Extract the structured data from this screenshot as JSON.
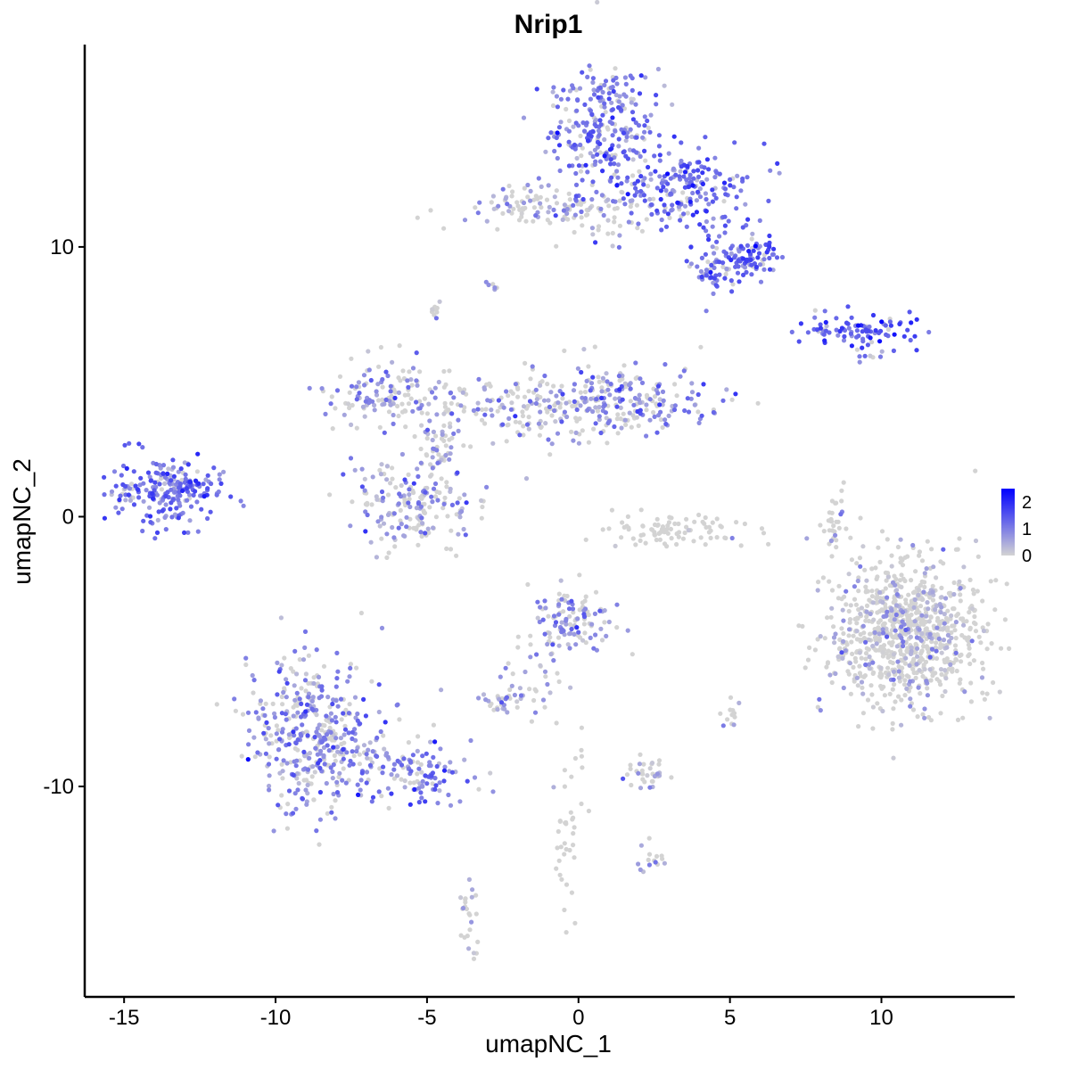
{
  "chart_data": {
    "type": "scatter",
    "title": "Nrip1",
    "xlabel": "umapNC_1",
    "ylabel": "umapNC_2",
    "xlim": [
      -16.3,
      14.4
    ],
    "ylim": [
      -17.8,
      17.5
    ],
    "x_ticks": [
      -15,
      -10,
      -5,
      0,
      5,
      10
    ],
    "y_ticks": [
      -10,
      0,
      10
    ],
    "x_tick_labels": [
      "-15",
      "-10",
      "-5",
      "0",
      "5",
      "10"
    ],
    "y_tick_labels": [
      "-10",
      "0",
      "10"
    ],
    "grid": false,
    "legend_position": "right",
    "color_scale": {
      "low_color": "#d3d3d3",
      "high_color": "#0000ff",
      "min": 0,
      "max": 2.5,
      "ticks": [
        0,
        1,
        2
      ],
      "tick_labels": [
        "0",
        "1",
        "2"
      ]
    },
    "clusters": [
      {
        "id": "top-main",
        "center": [
          0.8,
          14.5
        ],
        "spread": [
          0.9,
          1.2
        ],
        "n": 260,
        "expr_mean": 1.0
      },
      {
        "id": "top-arm",
        "center": [
          3.5,
          12.2
        ],
        "spread": [
          1.3,
          0.8
        ],
        "n": 220,
        "expr_mean": 1.2
      },
      {
        "id": "top-right-lobe",
        "center": [
          5.6,
          9.6
        ],
        "spread": [
          0.5,
          0.4
        ],
        "n": 90,
        "expr_mean": 1.3
      },
      {
        "id": "top-lower-lobe",
        "center": [
          4.4,
          9.2
        ],
        "spread": [
          0.4,
          0.5
        ],
        "n": 50,
        "expr_mean": 1.0
      },
      {
        "id": "top-left-strand",
        "center": [
          -1.5,
          11.5
        ],
        "spread": [
          1.3,
          0.4
        ],
        "n": 100,
        "expr_mean": 0.6
      },
      {
        "id": "top-link",
        "center": [
          1.2,
          11.2
        ],
        "spread": [
          1.0,
          0.5
        ],
        "n": 40,
        "expr_mean": 0.5
      },
      {
        "id": "right-upper",
        "center": [
          9.3,
          6.9
        ],
        "spread": [
          1.0,
          0.3
        ],
        "n": 90,
        "expr_mean": 1.4
      },
      {
        "id": "far-left",
        "center": [
          -13.5,
          1.0
        ],
        "spread": [
          0.9,
          0.6
        ],
        "n": 230,
        "expr_mean": 1.1
      },
      {
        "id": "mid-upper-left",
        "center": [
          -6.3,
          4.7
        ],
        "spread": [
          1.2,
          0.6
        ],
        "n": 130,
        "expr_mean": 0.7
      },
      {
        "id": "mid-center-arm",
        "center": [
          -1.2,
          4.0
        ],
        "spread": [
          2.0,
          0.6
        ],
        "n": 200,
        "expr_mean": 0.6
      },
      {
        "id": "mid-right-arm",
        "center": [
          1.8,
          4.3
        ],
        "spread": [
          1.6,
          0.6
        ],
        "n": 170,
        "expr_mean": 0.8
      },
      {
        "id": "mid-bottom-blob",
        "center": [
          -5.5,
          0.4
        ],
        "spread": [
          1.0,
          0.8
        ],
        "n": 180,
        "expr_mean": 0.7
      },
      {
        "id": "mid-stem",
        "center": [
          -4.6,
          2.6
        ],
        "spread": [
          0.4,
          0.8
        ],
        "n": 60,
        "expr_mean": 0.6
      },
      {
        "id": "crescent",
        "center": [
          3.0,
          -0.5
        ],
        "spread": [
          1.2,
          0.25
        ],
        "n": 90,
        "expr_mean": 0.1
      },
      {
        "id": "small-arc",
        "center": [
          8.4,
          -0.2
        ],
        "spread": [
          0.15,
          0.7
        ],
        "n": 30,
        "expr_mean": 0.3
      },
      {
        "id": "big-right",
        "center": [
          10.8,
          -4.3
        ],
        "spread": [
          1.2,
          1.4
        ],
        "n": 900,
        "expr_mean": 0.35
      },
      {
        "id": "center-lower",
        "center": [
          -0.2,
          -3.8
        ],
        "spread": [
          0.7,
          0.6
        ],
        "n": 120,
        "expr_mean": 0.8
      },
      {
        "id": "center-lower-stem",
        "center": [
          -1.5,
          -6.0
        ],
        "spread": [
          0.5,
          0.6
        ],
        "n": 30,
        "expr_mean": 0.6
      },
      {
        "id": "center-lower-small",
        "center": [
          -2.4,
          -6.9
        ],
        "spread": [
          0.3,
          0.2
        ],
        "n": 30,
        "expr_mean": 0.7
      },
      {
        "id": "bottom-left",
        "center": [
          -8.7,
          -8.2
        ],
        "spread": [
          1.1,
          1.4
        ],
        "n": 420,
        "expr_mean": 0.8
      },
      {
        "id": "bottom-left-tail",
        "center": [
          -5.5,
          -9.5
        ],
        "spread": [
          1.0,
          0.6
        ],
        "n": 120,
        "expr_mean": 1.0
      },
      {
        "id": "small-mid-right",
        "center": [
          2.3,
          -9.5
        ],
        "spread": [
          0.4,
          0.3
        ],
        "n": 35,
        "expr_mean": 0.5
      },
      {
        "id": "bottom-strand",
        "center": [
          -0.3,
          -11.3
        ],
        "spread": [
          0.3,
          1.5
        ],
        "n": 40,
        "expr_mean": 0.1
      },
      {
        "id": "bottom-small",
        "center": [
          -3.6,
          -14.8
        ],
        "spread": [
          0.2,
          0.6
        ],
        "n": 25,
        "expr_mean": 0.3
      },
      {
        "id": "small-right-mid",
        "center": [
          5.0,
          -7.3
        ],
        "spread": [
          0.15,
          0.3
        ],
        "n": 12,
        "expr_mean": 0.5
      },
      {
        "id": "upper-far-right-dots",
        "center": [
          9.6,
          6.0
        ],
        "spread": [
          0.3,
          0.2
        ],
        "n": 10,
        "expr_mean": 1.0
      },
      {
        "id": "tiny-left-top",
        "center": [
          -4.7,
          7.5
        ],
        "spread": [
          0.15,
          0.2
        ],
        "n": 10,
        "expr_mean": 0.6
      },
      {
        "id": "tiny-top-mid",
        "center": [
          -2.9,
          8.6
        ],
        "spread": [
          0.1,
          0.1
        ],
        "n": 6,
        "expr_mean": 0.8
      },
      {
        "id": "small-bottom-right-2",
        "center": [
          2.4,
          -12.6
        ],
        "spread": [
          0.3,
          0.3
        ],
        "n": 15,
        "expr_mean": 0.6
      }
    ]
  }
}
